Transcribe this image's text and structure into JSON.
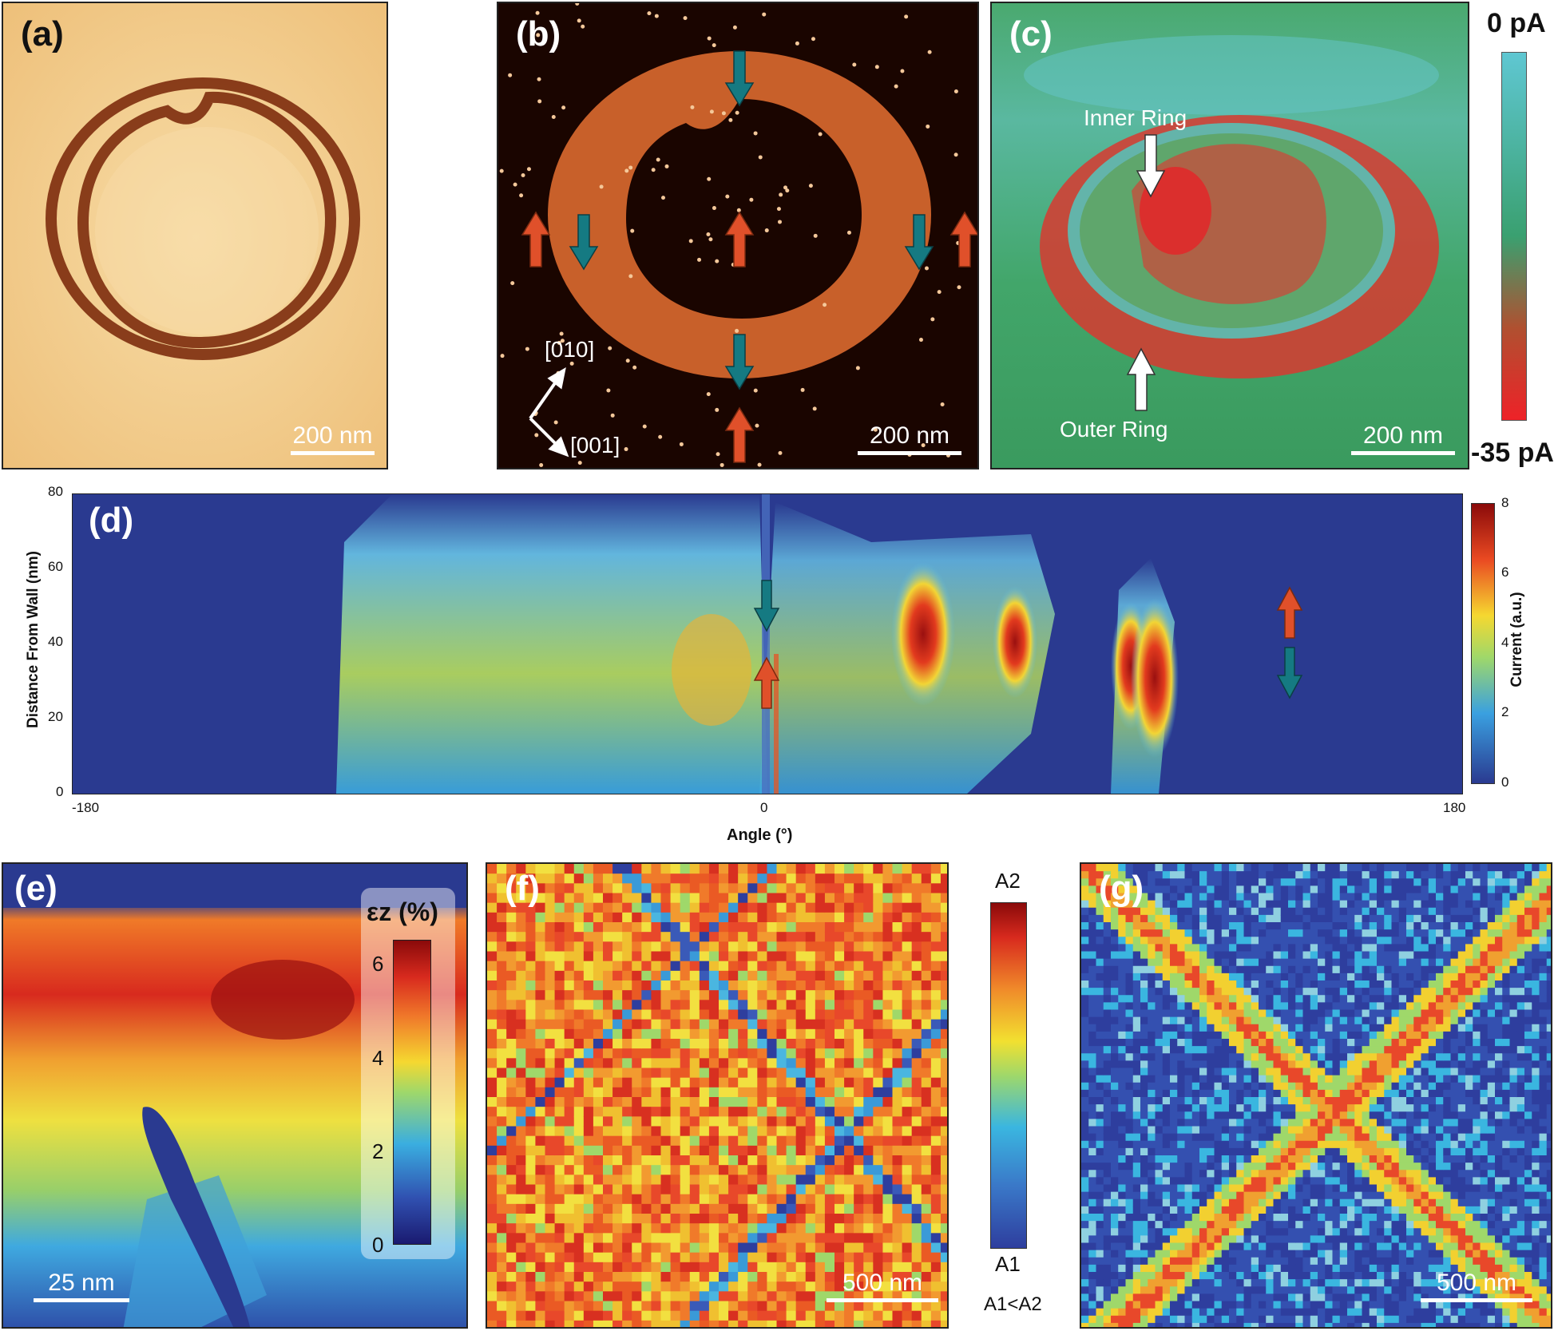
{
  "panels": {
    "a": {
      "label": "(a)",
      "scalebar": "200 nm"
    },
    "b": {
      "label": "(b)",
      "scalebar": "200 nm",
      "dir1": "[010]",
      "dir2": "[001]"
    },
    "c": {
      "label": "(c)",
      "scalebar": "200 nm",
      "inner_ring": "Inner Ring",
      "outer_ring": "Outer Ring",
      "cbar_top": "0 pA",
      "cbar_bottom": "-35 pA"
    },
    "d": {
      "label": "(d)",
      "ylabel": "Distance From Wall (nm)",
      "xlabel": "Angle (°)",
      "xticks": [
        "-180",
        "0",
        "180"
      ],
      "yticks": [
        "0",
        "20",
        "40",
        "60",
        "80"
      ],
      "cbar_label": "Current (a.u.)",
      "cbar_ticks": [
        "0",
        "2",
        "4",
        "6",
        "8"
      ]
    },
    "e": {
      "label": "(e)",
      "scalebar": "25 nm",
      "cbar_title": "εz (%)",
      "cbar_ticks": [
        "0",
        "2",
        "4",
        "6"
      ]
    },
    "f": {
      "label": "(f)",
      "scalebar": "500 nm"
    },
    "fg_cbar": {
      "top": "A2",
      "bottom": "A1",
      "note": "A1<A2"
    },
    "g": {
      "label": "(g)",
      "scalebar": "500 nm"
    }
  },
  "colors": {
    "afm_light": "#f0c47c",
    "afm_dark": "#7a2a0c",
    "piezo_bg": "#1a0500",
    "piezo_ring": "#c8602a",
    "current_bg": "#3fa86a",
    "current_red": "#e02a2a",
    "current_cyan": "#59c7cf",
    "arrow_teal": "#157a82",
    "arrow_orange": "#e0502a",
    "map_blue": "#2e3e9e"
  },
  "icons": [
    "arrow-up-icon",
    "arrow-down-icon",
    "crystal-axes-icon"
  ]
}
